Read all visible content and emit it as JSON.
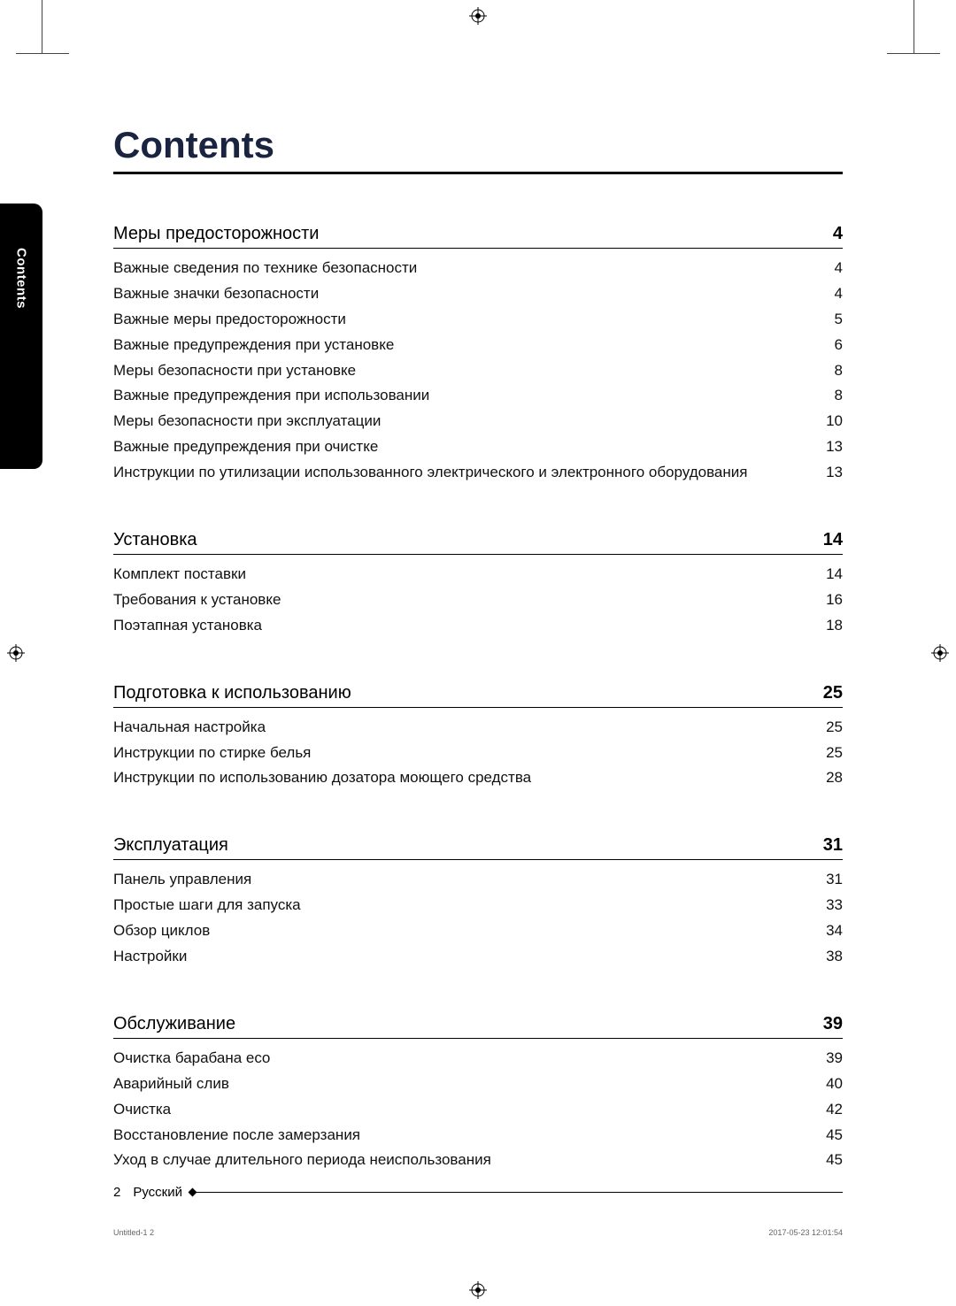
{
  "title": "Contents",
  "side_tab": "Contents",
  "sections": [
    {
      "title": "Меры предосторожности",
      "page": "4",
      "items": [
        {
          "t": "Важные сведения по технике безопасности",
          "p": "4"
        },
        {
          "t": "Важные значки безопасности",
          "p": "4"
        },
        {
          "t": "Важные меры предосторожности",
          "p": "5"
        },
        {
          "t": "Важные предупреждения при установке",
          "p": "6"
        },
        {
          "t": "Меры безопасности при установке",
          "p": "8"
        },
        {
          "t": "Важные предупреждения при использовании",
          "p": "8"
        },
        {
          "t": "Меры безопасности при эксплуатации",
          "p": "10"
        },
        {
          "t": "Важные предупреждения при очистке",
          "p": "13"
        },
        {
          "t": "Инструкции по утилизации использованного электрического и электронного оборудования",
          "p": "13"
        }
      ]
    },
    {
      "title": "Установка",
      "page": "14",
      "items": [
        {
          "t": "Комплект поставки",
          "p": "14"
        },
        {
          "t": "Требования к установке",
          "p": "16"
        },
        {
          "t": "Поэтапная установка",
          "p": "18"
        }
      ]
    },
    {
      "title": "Подготовка к использованию",
      "page": "25",
      "items": [
        {
          "t": "Начальная настройка",
          "p": "25"
        },
        {
          "t": "Инструкции по стирке белья",
          "p": "25"
        },
        {
          "t": "Инструкции по использованию дозатора моющего средства",
          "p": "28"
        }
      ]
    },
    {
      "title": "Эксплуатация",
      "page": "31",
      "items": [
        {
          "t": "Панель управления",
          "p": "31"
        },
        {
          "t": "Простые шаги для запуска",
          "p": "33"
        },
        {
          "t": "Обзор циклов",
          "p": "34"
        },
        {
          "t": "Настройки",
          "p": "38"
        }
      ]
    },
    {
      "title": "Обслуживание",
      "page": "39",
      "items": [
        {
          "t": "Очистка барабана eco",
          "p": "39"
        },
        {
          "t": "Аварийный слив",
          "p": "40"
        },
        {
          "t": "Очистка",
          "p": "42"
        },
        {
          "t": "Восстановление после замерзания",
          "p": "45"
        },
        {
          "t": "Уход в случае длительного периода неиспользования",
          "p": "45"
        }
      ]
    }
  ],
  "footer": {
    "page_num": "2",
    "lang": "Русский"
  },
  "meta": {
    "left": "Untitled-1   2",
    "right": "2017-05-23   12:01:54"
  },
  "colors": {
    "title": "#1a2340",
    "text": "#000000",
    "bg": "#ffffff"
  }
}
